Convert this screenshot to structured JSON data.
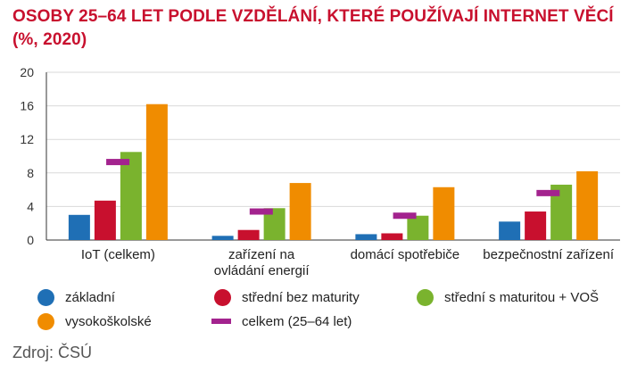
{
  "title_lines": [
    "OSOBY 25–64 LET PODLE VZDĚLÁNÍ, KTERÉ POUŽÍVAJÍ INTERNET VĚCÍ",
    "(%, 2020)"
  ],
  "source": "Zdroj: ČSÚ",
  "colors": {
    "title": "#c8102e",
    "zakladni": "#1f6fb5",
    "stredni_bez": "#c8102e",
    "stredni_s": "#7ab32e",
    "vs": "#f08c00",
    "celkem": "#a3238e",
    "grid": "#d9d9d9"
  },
  "chart_data": {
    "type": "bar",
    "title": "OSOBY 25–64 LET PODLE VZDĚLÁNÍ, KTERÉ POUŽÍVAJÍ INTERNET VĚCÍ (%, 2020)",
    "categories": [
      [
        "IoT (celkem)"
      ],
      [
        "zařízení na",
        "ovládání energií"
      ],
      [
        "domácí spotřebiče"
      ],
      [
        "bezpečnostní zařízení"
      ]
    ],
    "ylim": [
      0,
      20
    ],
    "yticks": [
      0,
      4,
      8,
      12,
      16,
      20
    ],
    "grid": true,
    "series": [
      {
        "name": "základní",
        "color_key": "zakladni",
        "values": [
          3.0,
          0.5,
          0.7,
          2.2
        ]
      },
      {
        "name": "střední bez maturity",
        "color_key": "stredni_bez",
        "values": [
          4.7,
          1.2,
          0.8,
          3.4
        ]
      },
      {
        "name": "střední s maturitou + VOŠ",
        "color_key": "stredni_s",
        "values": [
          10.5,
          3.8,
          2.9,
          6.6
        ]
      },
      {
        "name": "vysokoškolské",
        "color_key": "vs",
        "values": [
          16.2,
          6.8,
          6.3,
          8.2
        ]
      }
    ],
    "marker_series": {
      "name": "celkem (25–64 let)",
      "color_key": "celkem",
      "values": [
        9.3,
        3.4,
        2.9,
        5.6
      ]
    },
    "legend_position": "bottom"
  }
}
